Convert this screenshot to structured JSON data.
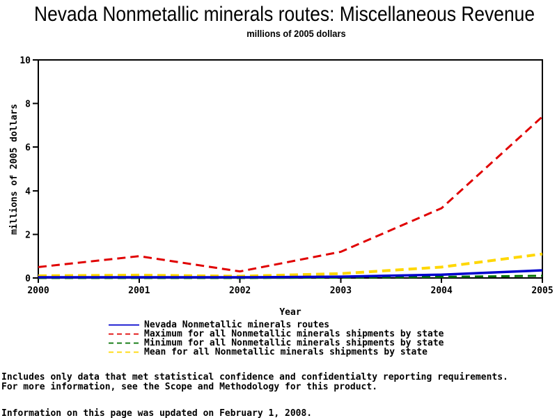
{
  "title": "Nevada Nonmetallic minerals routes: Miscellaneous Revenue",
  "subtitle": "millions of 2005 dollars",
  "chart_data": {
    "type": "line",
    "x": [
      2000,
      2001,
      2002,
      2003,
      2004,
      2005
    ],
    "xlabel": "Year",
    "ylabel": "millions of 2005 dollars",
    "ylim": [
      0,
      10
    ],
    "yticks": [
      0,
      2,
      4,
      6,
      8,
      10
    ],
    "grid": false,
    "legend_position": "bottom",
    "series": [
      {
        "key": "nevada",
        "name": "Nevada Nonmetallic minerals routes",
        "color": "#0000cc",
        "dash": "solid",
        "values": [
          0.03,
          0.03,
          0.03,
          0.06,
          0.15,
          0.35
        ]
      },
      {
        "key": "maximum",
        "name": "Maximum for all Nonmetallic minerals shipments by state",
        "color": "#e00000",
        "dash": "dashed",
        "values": [
          0.5,
          1.0,
          0.3,
          1.2,
          3.2,
          7.4
        ]
      },
      {
        "key": "minimum",
        "name": "Minimum for all Nonmetallic minerals shipments by state",
        "color": "#007000",
        "dash": "dashed",
        "values": [
          0.0,
          0.0,
          0.0,
          0.02,
          0.05,
          0.1
        ]
      },
      {
        "key": "mean",
        "name": "Mean for all Nonmetallic minerals shipments by state",
        "color": "#ffd700",
        "dash": "dashed",
        "values": [
          0.1,
          0.13,
          0.08,
          0.2,
          0.5,
          1.1
        ]
      }
    ]
  },
  "footnotes": {
    "line1": "Includes only data that met statistical confidence and confidentialty reporting requirements.",
    "line2": "For more information, see the Scope and Methodology for this product.",
    "updated": "Information on this page was updated on February 1, 2008."
  }
}
